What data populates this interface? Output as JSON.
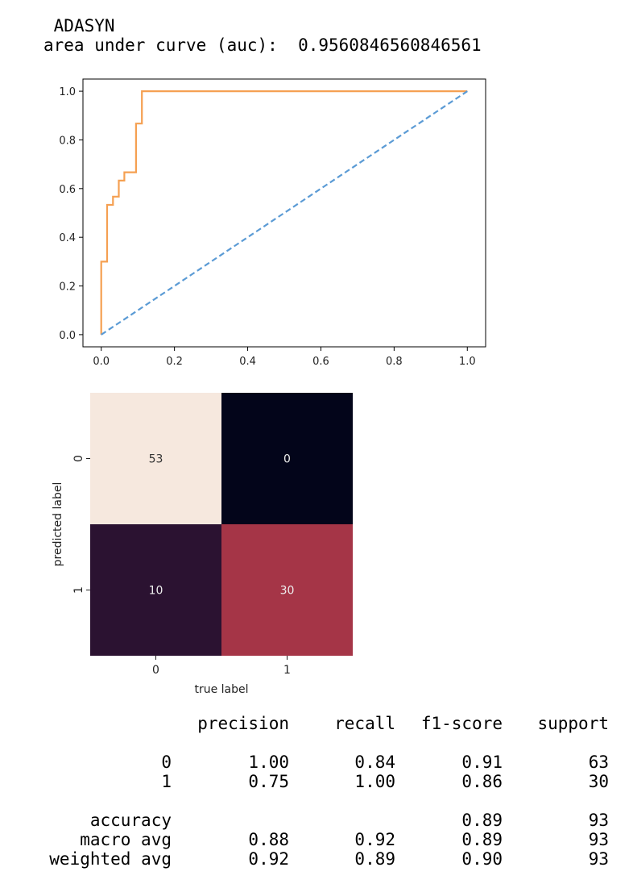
{
  "output": {
    "method": "ADASYN",
    "auc_label": "area under curve (auc): ",
    "auc_value": "0.9560846560846561"
  },
  "colors": {
    "roc_line": "#f5a052",
    "diagonal": "#5b9bd5",
    "cm_scale": [
      "#03051a",
      "#4a1c43",
      "#cd4049",
      "#f6e8de"
    ]
  },
  "chart_data": [
    {
      "type": "line",
      "xlim": [
        -0.05,
        1.05
      ],
      "ylim": [
        -0.05,
        1.05
      ],
      "x_ticks": [
        "0.0",
        "0.2",
        "0.4",
        "0.6",
        "0.8",
        "1.0"
      ],
      "y_ticks": [
        "0.0",
        "0.2",
        "0.4",
        "0.6",
        "0.8",
        "1.0"
      ],
      "grid": false,
      "series": [
        {
          "style": "solid",
          "color": "#f5a052",
          "x": [
            0,
            0,
            0.016,
            0.016,
            0.016,
            0.032,
            0.032,
            0.032,
            0.048,
            0.048,
            0.063,
            0.063,
            0.095,
            0.095,
            0.111,
            0.111,
            1.0
          ],
          "y": [
            0,
            0.3,
            0.3,
            0.533,
            0.533,
            0.533,
            0.567,
            0.567,
            0.567,
            0.633,
            0.633,
            0.667,
            0.667,
            0.867,
            0.867,
            1.0,
            1.0
          ]
        },
        {
          "style": "dashed",
          "color": "#5b9bd5",
          "x": [
            0,
            1
          ],
          "y": [
            0,
            1
          ]
        }
      ]
    },
    {
      "type": "heatmap",
      "x_categories": [
        "0",
        "1"
      ],
      "y_categories": [
        "0",
        "1"
      ],
      "values": [
        [
          53,
          0
        ],
        [
          10,
          30
        ]
      ],
      "xlabel": "true label",
      "ylabel": "predicted label"
    }
  ],
  "report": {
    "headers": [
      "precision",
      "recall",
      "f1-score",
      "support"
    ],
    "rows": [
      [
        "0",
        "1.00",
        "0.84",
        "0.91",
        "63"
      ],
      [
        "1",
        "0.75",
        "1.00",
        "0.86",
        "30"
      ],
      [
        "accuracy",
        "",
        "",
        "0.89",
        "93"
      ],
      [
        "macro avg",
        "0.88",
        "0.92",
        "0.89",
        "93"
      ],
      [
        "weighted avg",
        "0.92",
        "0.89",
        "0.90",
        "93"
      ]
    ]
  }
}
